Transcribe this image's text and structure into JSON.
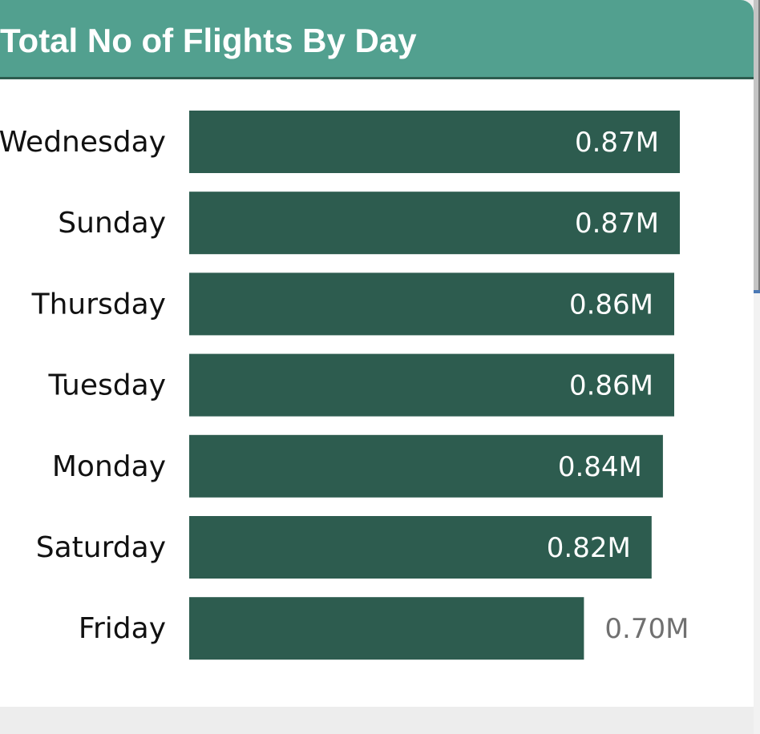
{
  "header": {
    "title": "Total No of Flights By Day"
  },
  "colors": {
    "header_bg": "#52a08f",
    "bar": "#2d5c4f",
    "label_inside": "#ffffff",
    "label_outside": "#707070"
  },
  "chart_data": {
    "type": "bar",
    "orientation": "horizontal",
    "title": "Total No of Flights By Day",
    "categories": [
      "Wednesday",
      "Sunday",
      "Thursday",
      "Tuesday",
      "Monday",
      "Saturday",
      "Friday"
    ],
    "values": [
      0.87,
      0.87,
      0.86,
      0.86,
      0.84,
      0.82,
      0.7
    ],
    "value_unit": "M",
    "data_labels": [
      "0.87M",
      "0.87M",
      "0.86M",
      "0.86M",
      "0.84M",
      "0.82M",
      "0.70M"
    ],
    "xlim": [
      0,
      0.87
    ],
    "grid": false,
    "legend": "none"
  }
}
